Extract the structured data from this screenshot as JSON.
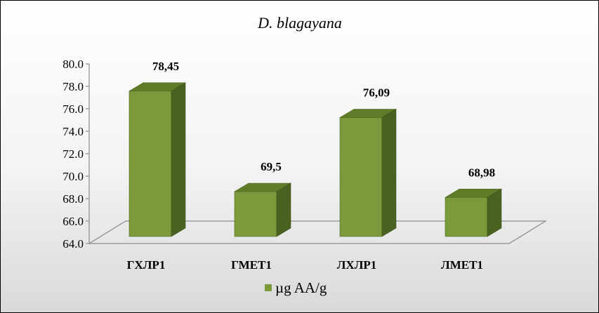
{
  "chart_data": {
    "type": "bar",
    "title": "D. blagayana",
    "categories": [
      "ГХЛР1",
      "ГМЕТ1",
      "ЛХЛР1",
      "ЛМЕТ1"
    ],
    "series": [
      {
        "name": "µg AA/g",
        "values": [
          78.45,
          69.5,
          76.09,
          68.98
        ],
        "labels": [
          "78,45",
          "69,5",
          "76,09",
          "68,98"
        ]
      }
    ],
    "yticks": [
      "64.0",
      "66.0",
      "68.0",
      "70.0",
      "72.0",
      "74.0",
      "76.0",
      "78.0",
      "80.0"
    ],
    "ylim": [
      64,
      80
    ],
    "grid": false,
    "legend": "bottom",
    "three_d": true,
    "colors": {
      "front": "#7a9a3c",
      "top": "#5f7d28",
      "side": "#4a6220",
      "legend_swatch": "#7a9a3c"
    }
  }
}
